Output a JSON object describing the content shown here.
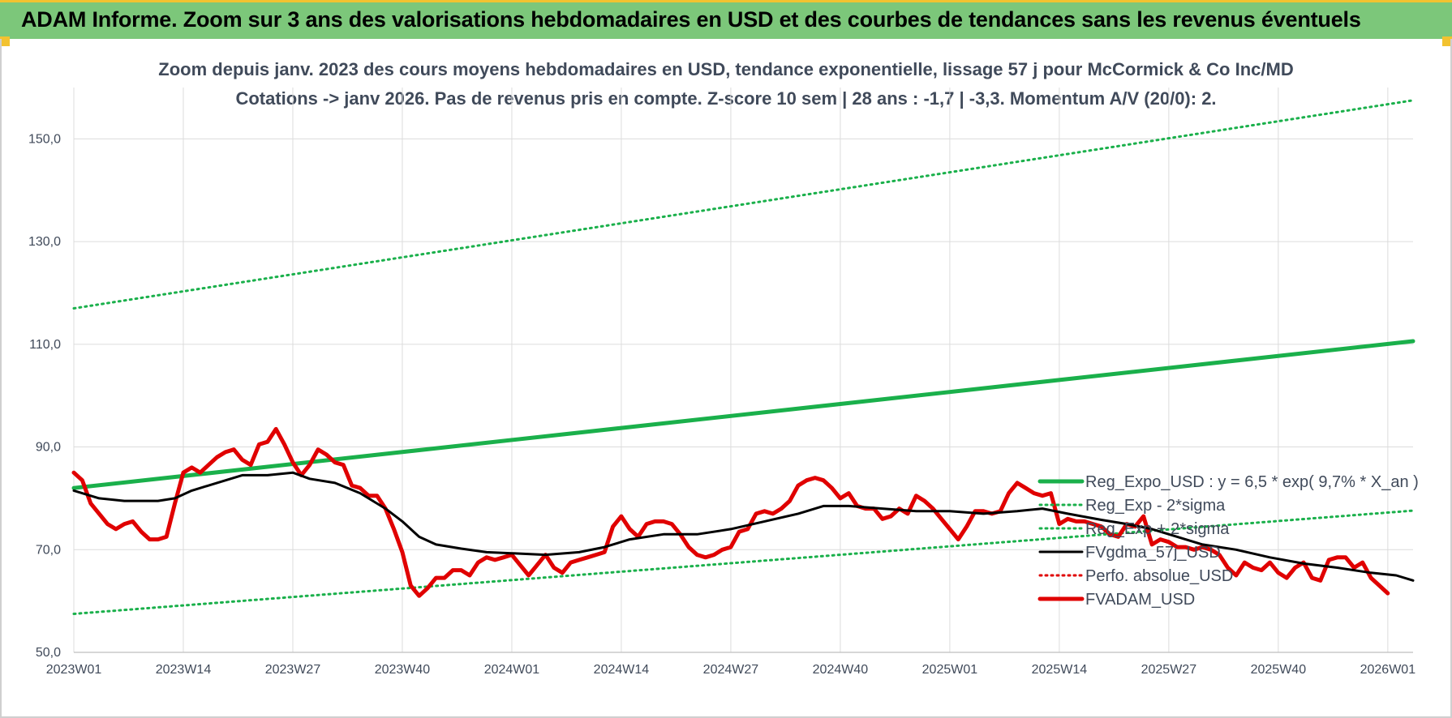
{
  "header": {
    "title": "ADAM Informe. Zoom sur 3 ans des valorisations hebdomadaires en USD et des courbes de tendances sans les revenus éventuels",
    "banner_color": "#7cc77a",
    "accent_color": "#f2c230"
  },
  "chart_data": {
    "type": "line",
    "title": "Zoom depuis janv. 2023 des cours moyens hebdomadaires en USD, tendance exponentielle, lissage 57 j pour McCormick & Co Inc/MD",
    "subtitle": "Cotations -> janv 2026. Pas de revenus pris en compte. Z-score 10 sem | 28 ans : -1,7 | -3,3. Momentum A/V (20/0): 2.",
    "xlabel": "",
    "ylabel": "",
    "ylim": [
      50,
      160
    ],
    "yticks": [
      "50,0",
      "70,0",
      "90,0",
      "110,0",
      "130,0",
      "150,0"
    ],
    "ytick_values": [
      50,
      70,
      90,
      110,
      130,
      150
    ],
    "x_range": [
      0,
      159
    ],
    "xticks": [
      "2023W01",
      "2023W14",
      "2023W27",
      "2023W40",
      "2024W01",
      "2024W14",
      "2024W27",
      "2024W40",
      "2025W01",
      "2025W14",
      "2025W27",
      "2025W40",
      "2026W01"
    ],
    "xtick_positions": [
      0,
      13,
      26,
      39,
      52,
      65,
      78,
      91,
      104,
      117,
      130,
      143,
      156
    ],
    "grid": true,
    "legend_position": "right",
    "series": [
      {
        "name": "Reg_Expo_USD : y = 6,5 * exp( 9,7% * X_an )",
        "color": "#1ab04b",
        "style": "solid-thick",
        "points": [
          [
            0,
            82.0
          ],
          [
            159,
            110.6
          ]
        ]
      },
      {
        "name": "Reg_Exp - 2*sigma",
        "color": "#1ab04b",
        "style": "dotted",
        "points": [
          [
            0,
            57.5
          ],
          [
            159,
            77.6
          ]
        ]
      },
      {
        "name": "Reg_Exp + 2*sigma",
        "color": "#1ab04b",
        "style": "dotted",
        "points": [
          [
            0,
            117.0
          ],
          [
            159,
            157.5
          ]
        ]
      },
      {
        "name": "FVgdma_57j_USD",
        "color": "#000000",
        "style": "solid",
        "points": [
          [
            0,
            81.5
          ],
          [
            3,
            80.0
          ],
          [
            6,
            79.5
          ],
          [
            10,
            79.5
          ],
          [
            12,
            80.0
          ],
          [
            14,
            81.5
          ],
          [
            17,
            83.0
          ],
          [
            20,
            84.5
          ],
          [
            23,
            84.5
          ],
          [
            26,
            85.0
          ],
          [
            28,
            83.8
          ],
          [
            31,
            83.0
          ],
          [
            34,
            81.0
          ],
          [
            37,
            78.0
          ],
          [
            39,
            75.5
          ],
          [
            41,
            72.5
          ],
          [
            43,
            71.0
          ],
          [
            46,
            70.2
          ],
          [
            49,
            69.5
          ],
          [
            52,
            69.3
          ],
          [
            56,
            69.0
          ],
          [
            60,
            69.5
          ],
          [
            63,
            70.5
          ],
          [
            66,
            72.0
          ],
          [
            70,
            73.0
          ],
          [
            74,
            73.0
          ],
          [
            78,
            74.0
          ],
          [
            82,
            75.5
          ],
          [
            86,
            77.0
          ],
          [
            89,
            78.5
          ],
          [
            92,
            78.5
          ],
          [
            96,
            78.0
          ],
          [
            100,
            77.5
          ],
          [
            104,
            77.5
          ],
          [
            108,
            77.0
          ],
          [
            112,
            77.5
          ],
          [
            115,
            78.0
          ],
          [
            118,
            77.0
          ],
          [
            122,
            75.8
          ],
          [
            125,
            75.0
          ],
          [
            128,
            74.0
          ],
          [
            131,
            72.5
          ],
          [
            134,
            71.0
          ],
          [
            138,
            70.0
          ],
          [
            142,
            68.5
          ],
          [
            146,
            67.3
          ],
          [
            150,
            66.5
          ],
          [
            154,
            65.5
          ],
          [
            157,
            65.0
          ],
          [
            159,
            64.0
          ]
        ]
      },
      {
        "name": "Perfo. absolue_USD",
        "color": "#e00000",
        "style": "dotted",
        "points": []
      },
      {
        "name": "FVADAM_USD",
        "color": "#e00000",
        "style": "solid-thick",
        "points": [
          [
            0,
            85.0
          ],
          [
            1,
            83.5
          ],
          [
            2,
            79.0
          ],
          [
            3,
            77.0
          ],
          [
            4,
            75.0
          ],
          [
            5,
            74.0
          ],
          [
            6,
            75.0
          ],
          [
            7,
            75.5
          ],
          [
            8,
            73.5
          ],
          [
            9,
            72.0
          ],
          [
            10,
            72.0
          ],
          [
            11,
            72.5
          ],
          [
            12,
            79.0
          ],
          [
            13,
            85.0
          ],
          [
            14,
            86.0
          ],
          [
            15,
            85.0
          ],
          [
            16,
            86.5
          ],
          [
            17,
            88.0
          ],
          [
            18,
            89.0
          ],
          [
            19,
            89.5
          ],
          [
            20,
            87.5
          ],
          [
            21,
            86.5
          ],
          [
            22,
            90.5
          ],
          [
            23,
            91.0
          ],
          [
            24,
            93.5
          ],
          [
            25,
            90.5
          ],
          [
            26,
            87.0
          ],
          [
            27,
            84.5
          ],
          [
            28,
            86.5
          ],
          [
            29,
            89.5
          ],
          [
            30,
            88.5
          ],
          [
            31,
            87.0
          ],
          [
            32,
            86.5
          ],
          [
            33,
            82.5
          ],
          [
            34,
            82.0
          ],
          [
            35,
            80.5
          ],
          [
            36,
            80.5
          ],
          [
            37,
            78.0
          ],
          [
            38,
            74.0
          ],
          [
            39,
            69.5
          ],
          [
            40,
            63.0
          ],
          [
            41,
            61.0
          ],
          [
            42,
            62.5
          ],
          [
            43,
            64.5
          ],
          [
            44,
            64.5
          ],
          [
            45,
            66.0
          ],
          [
            46,
            66.0
          ],
          [
            47,
            65.0
          ],
          [
            48,
            67.5
          ],
          [
            49,
            68.5
          ],
          [
            50,
            68.0
          ],
          [
            51,
            68.5
          ],
          [
            52,
            69.0
          ],
          [
            53,
            67.0
          ],
          [
            54,
            65.0
          ],
          [
            55,
            67.0
          ],
          [
            56,
            69.0
          ],
          [
            57,
            66.5
          ],
          [
            58,
            65.5
          ],
          [
            59,
            67.5
          ],
          [
            60,
            68.0
          ],
          [
            61,
            68.5
          ],
          [
            62,
            69.0
          ],
          [
            63,
            69.5
          ],
          [
            64,
            74.5
          ],
          [
            65,
            76.5
          ],
          [
            66,
            74.0
          ],
          [
            67,
            72.5
          ],
          [
            68,
            75.0
          ],
          [
            69,
            75.5
          ],
          [
            70,
            75.5
          ],
          [
            71,
            75.0
          ],
          [
            72,
            73.0
          ],
          [
            73,
            70.5
          ],
          [
            74,
            69.0
          ],
          [
            75,
            68.5
          ],
          [
            76,
            69.0
          ],
          [
            77,
            70.0
          ],
          [
            78,
            70.5
          ],
          [
            79,
            73.5
          ],
          [
            80,
            74.0
          ],
          [
            81,
            77.0
          ],
          [
            82,
            77.5
          ],
          [
            83,
            77.0
          ],
          [
            84,
            78.0
          ],
          [
            85,
            79.5
          ],
          [
            86,
            82.5
          ],
          [
            87,
            83.5
          ],
          [
            88,
            84.0
          ],
          [
            89,
            83.5
          ],
          [
            90,
            82.0
          ],
          [
            91,
            80.0
          ],
          [
            92,
            81.0
          ],
          [
            93,
            78.5
          ],
          [
            94,
            78.0
          ],
          [
            95,
            78.0
          ],
          [
            96,
            76.0
          ],
          [
            97,
            76.5
          ],
          [
            98,
            78.0
          ],
          [
            99,
            77.0
          ],
          [
            100,
            80.5
          ],
          [
            101,
            79.5
          ],
          [
            102,
            78.0
          ],
          [
            103,
            76.0
          ],
          [
            104,
            74.0
          ],
          [
            105,
            72.0
          ],
          [
            106,
            74.5
          ],
          [
            107,
            77.5
          ],
          [
            108,
            77.5
          ],
          [
            109,
            77.0
          ],
          [
            110,
            77.5
          ],
          [
            111,
            81.0
          ],
          [
            112,
            83.0
          ],
          [
            113,
            82.0
          ],
          [
            114,
            81.0
          ],
          [
            115,
            80.5
          ],
          [
            116,
            81.0
          ],
          [
            117,
            75.0
          ],
          [
            118,
            76.0
          ],
          [
            119,
            75.5
          ],
          [
            120,
            75.5
          ],
          [
            121,
            75.0
          ],
          [
            122,
            74.5
          ],
          [
            123,
            73.0
          ],
          [
            124,
            72.5
          ],
          [
            125,
            75.0
          ],
          [
            126,
            74.5
          ],
          [
            127,
            76.5
          ],
          [
            128,
            71.0
          ],
          [
            129,
            72.0
          ],
          [
            130,
            71.5
          ],
          [
            131,
            70.5
          ],
          [
            132,
            70.5
          ],
          [
            133,
            70.0
          ],
          [
            134,
            70.5
          ],
          [
            135,
            70.0
          ],
          [
            136,
            69.0
          ],
          [
            137,
            66.5
          ],
          [
            138,
            65.0
          ],
          [
            139,
            67.5
          ],
          [
            140,
            66.5
          ],
          [
            141,
            66.0
          ],
          [
            142,
            67.5
          ],
          [
            143,
            65.5
          ],
          [
            144,
            64.5
          ],
          [
            145,
            66.5
          ],
          [
            146,
            67.5
          ],
          [
            147,
            64.5
          ],
          [
            148,
            64.0
          ],
          [
            149,
            68.0
          ],
          [
            150,
            68.5
          ],
          [
            151,
            68.5
          ],
          [
            152,
            66.5
          ],
          [
            153,
            67.5
          ],
          [
            154,
            64.5
          ],
          [
            155,
            63.0
          ],
          [
            156,
            61.5
          ]
        ]
      }
    ]
  }
}
